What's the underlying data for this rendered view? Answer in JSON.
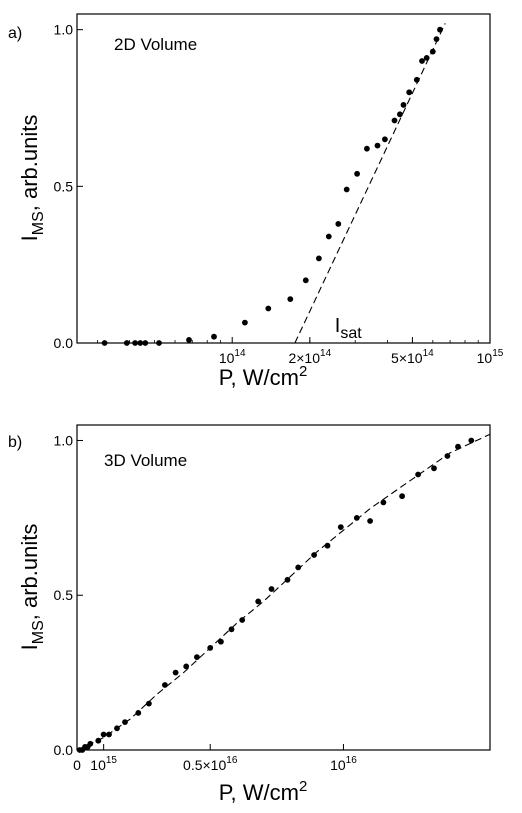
{
  "chart_data": [
    {
      "type": "scatter",
      "panel_label": "a)",
      "inset_label": "2D Volume",
      "xlabel": "P, W/cm",
      "xlabel_sup": "2",
      "ylabel_main": "I",
      "ylabel_sub": "MS",
      "ylabel_rest": ", arb.units",
      "x_scale": "log",
      "xlim": [
        25000000000000.0,
        1000000000000000.0
      ],
      "ylim": [
        0,
        1.05
      ],
      "x_ticks": [
        {
          "value": 100000000000000.0,
          "label_base": "10",
          "label_sup": "14"
        },
        {
          "value": 200000000000000.0,
          "label_base": "2×10",
          "label_sup": "14"
        },
        {
          "value": 500000000000000.0,
          "label_base": "5×10",
          "label_sup": "14"
        },
        {
          "value": 1000000000000000.0,
          "label_base": "10",
          "label_sup": "15"
        }
      ],
      "y_ticks": [
        {
          "value": 0.0,
          "label": "0.0"
        },
        {
          "value": 0.5,
          "label": "0.5"
        },
        {
          "value": 1.0,
          "label": "1.0"
        }
      ],
      "annotation": {
        "text": "I",
        "sub": "sat",
        "x": 250000000000000.0,
        "y": 0.035
      },
      "fit_line": {
        "style": "dashed",
        "points": [
          [
            175000000000000.0,
            0.0
          ],
          [
            670000000000000.0,
            1.02
          ]
        ]
      },
      "series": [
        {
          "x": [
            32000000000000.0,
            39000000000000.0,
            42000000000000.0,
            44000000000000.0,
            46000000000000.0,
            52000000000000.0,
            68000000000000.0,
            85000000000000.0,
            112000000000000.0,
            138000000000000.0,
            168000000000000.0,
            193000000000000.0,
            217000000000000.0,
            237000000000000.0,
            258000000000000.0,
            278000000000000.0,
            305000000000000.0,
            333000000000000.0,
            366000000000000.0,
            391000000000000.0,
            426000000000000.0,
            447000000000000.0,
            462000000000000.0,
            486000000000000.0,
            520000000000000.0,
            545000000000000.0,
            568000000000000.0,
            600000000000000.0,
            620000000000000.0,
            640000000000000.0
          ],
          "y": [
            0.0,
            0.0,
            0.0,
            0.0,
            0.0,
            0.0,
            0.01,
            0.02,
            0.065,
            0.11,
            0.14,
            0.2,
            0.27,
            0.34,
            0.38,
            0.49,
            0.54,
            0.62,
            0.63,
            0.65,
            0.71,
            0.73,
            0.76,
            0.8,
            0.84,
            0.9,
            0.91,
            0.93,
            0.97,
            1.0
          ]
        }
      ]
    },
    {
      "type": "scatter",
      "panel_label": "b)",
      "inset_label": "3D Volume",
      "xlabel": "P, W/cm",
      "xlabel_sup": "2",
      "ylabel_main": "I",
      "ylabel_sub": "MS",
      "ylabel_rest": ", arb.units",
      "x_scale": "linear",
      "xlim": [
        0,
        1.55e+16
      ],
      "ylim": [
        0,
        1.05
      ],
      "x_ticks": [
        {
          "value": 0,
          "label_base": "0",
          "label_sup": ""
        },
        {
          "value": 1000000000000000.0,
          "label_base": "10",
          "label_sup": "15"
        },
        {
          "value": 5000000000000000.0,
          "label_base": "0.5×10",
          "label_sup": "16"
        },
        {
          "value": 1e+16,
          "label_base": "10",
          "label_sup": "16"
        }
      ],
      "y_ticks": [
        {
          "value": 0.0,
          "label": "0.0"
        },
        {
          "value": 0.5,
          "label": "0.5"
        },
        {
          "value": 1.0,
          "label": "1.0"
        }
      ],
      "fit_line": {
        "style": "dashed",
        "points": [
          [
            0,
            0.0
          ],
          [
            1000000000000000.0,
            0.04
          ],
          [
            2000000000000000.0,
            0.1
          ],
          [
            3000000000000000.0,
            0.18
          ],
          [
            4000000000000000.0,
            0.25
          ],
          [
            5000000000000000.0,
            0.33
          ],
          [
            6000000000000000.0,
            0.41
          ],
          [
            7000000000000000.0,
            0.48
          ],
          [
            8000000000000000.0,
            0.56
          ],
          [
            9000000000000000.0,
            0.64
          ],
          [
            1e+16,
            0.71
          ],
          [
            1.1e+16,
            0.78
          ],
          [
            1.2e+16,
            0.84
          ],
          [
            1.3e+16,
            0.9
          ],
          [
            1.4e+16,
            0.96
          ],
          [
            1.55e+16,
            1.02
          ]
        ]
      },
      "series": [
        {
          "x": [
            100000000000000.0,
            200000000000000.0,
            300000000000000.0,
            400000000000000.0,
            500000000000000.0,
            800000000000000.0,
            1000000000000000.0,
            1200000000000000.0,
            1500000000000000.0,
            1800000000000000.0,
            2300000000000000.0,
            2700000000000000.0,
            3300000000000000.0,
            3700000000000000.0,
            4100000000000000.0,
            4500000000000000.0,
            5000000000000000.0,
            5400000000000000.0,
            5800000000000000.0,
            6200000000000000.0,
            6800000000000000.0,
            7300000000000000.0,
            7900000000000000.0,
            8300000000000000.0,
            8900000000000000.0,
            9400000000000000.0,
            9900000000000000.0,
            1.05e+16,
            1.1e+16,
            1.15e+16,
            1.22e+16,
            1.28e+16,
            1.34e+16,
            1.39e+16,
            1.43e+16,
            1.48e+16
          ],
          "y": [
            0.0,
            0.0,
            0.01,
            0.01,
            0.02,
            0.03,
            0.05,
            0.05,
            0.07,
            0.09,
            0.12,
            0.15,
            0.21,
            0.25,
            0.27,
            0.3,
            0.33,
            0.35,
            0.39,
            0.42,
            0.48,
            0.52,
            0.55,
            0.59,
            0.63,
            0.66,
            0.72,
            0.75,
            0.74,
            0.8,
            0.82,
            0.89,
            0.91,
            0.95,
            0.98,
            1.0
          ]
        }
      ]
    }
  ]
}
